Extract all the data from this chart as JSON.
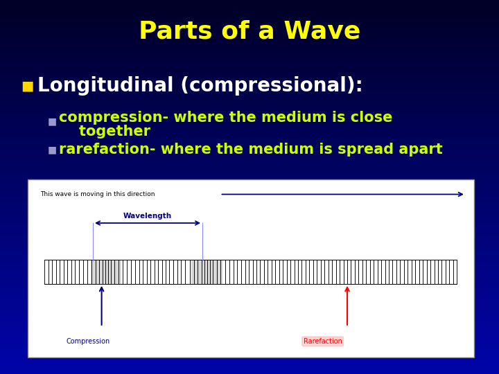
{
  "title": "Parts of a Wave",
  "title_color": "#FFFF00",
  "title_fontsize": 26,
  "bg_color": "#0000AA",
  "bullet1_text": "Longitudinal (compressional):",
  "bullet1_color": "#FFFFFF",
  "bullet1_fontsize": 20,
  "bullet1_marker_color": "#FFD700",
  "sub_bullet_color": "#CCFF00",
  "sub_bullet_marker_color": "#9999CC",
  "sub_bullet_fontsize": 15,
  "sub1_line1": "compression- where the medium is close",
  "sub1_line2": "    together",
  "sub2_text": "rarefaction- where the medium is spread apart",
  "wave_direction_text": "This wave is moving in this direction",
  "wavelength_text": "Wavelength",
  "compression_text": "Compression",
  "rarefaction_text": "Rarefaction"
}
